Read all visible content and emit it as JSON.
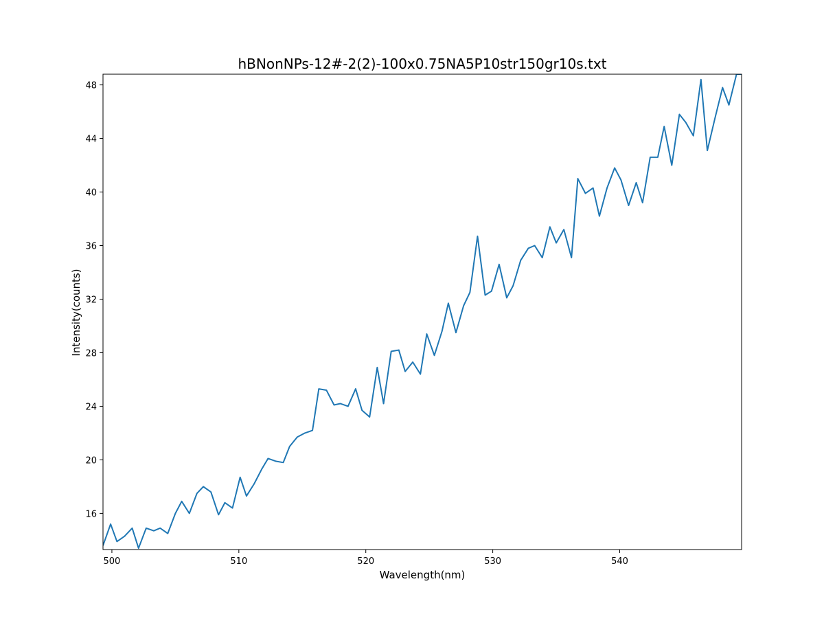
{
  "chart_data": {
    "type": "line",
    "title": "hBNonNPs-12#-2(2)-100x0.75NA5P10str150gr10s.txt",
    "xlabel": "Wavelength(nm)",
    "ylabel": "Intensity(counts)",
    "xlim": [
      499.3,
      549.6
    ],
    "ylim": [
      13.3,
      48.8
    ],
    "xticks": [
      500,
      510,
      520,
      530,
      540
    ],
    "yticks": [
      16,
      20,
      24,
      28,
      32,
      36,
      40,
      44,
      48
    ],
    "grid": false,
    "legend": "none",
    "line_color": "#1f77b4",
    "series": [
      {
        "x": [
          499.3,
          499.9,
          500.4,
          501.0,
          501.6,
          502.1,
          502.7,
          503.3,
          503.8,
          504.4,
          505.0,
          505.5,
          506.1,
          506.7,
          507.2,
          507.8,
          508.4,
          508.9,
          509.5,
          510.1,
          510.6,
          511.2,
          511.8,
          512.3,
          512.9,
          513.5,
          514.0,
          514.6,
          515.2,
          515.8,
          516.3,
          516.9,
          517.5,
          518.0,
          518.6,
          519.2,
          519.7,
          520.3,
          520.9,
          521.4,
          522.0,
          522.6,
          523.1,
          523.7,
          524.3,
          524.8,
          525.4,
          526.0,
          526.5,
          527.1,
          527.7,
          528.2,
          528.8,
          529.4,
          529.9,
          530.5,
          531.1,
          531.6,
          532.2,
          532.8,
          533.3,
          533.9,
          534.5,
          535.0,
          535.6,
          536.2,
          536.7,
          537.3,
          537.9,
          538.4,
          539.0,
          539.6,
          540.1,
          540.7,
          541.3,
          541.8,
          542.4,
          543.0,
          543.5,
          544.1,
          544.7,
          545.2,
          545.8,
          546.4,
          546.9,
          547.5,
          548.1,
          548.6,
          549.2,
          549.6
        ],
        "y": [
          13.6,
          15.2,
          13.9,
          14.3,
          14.9,
          13.4,
          14.9,
          14.7,
          14.9,
          14.5,
          16.0,
          16.9,
          16.0,
          17.5,
          18.0,
          17.6,
          15.9,
          16.8,
          16.4,
          18.7,
          17.3,
          18.2,
          19.3,
          20.1,
          19.9,
          19.8,
          21.0,
          21.7,
          22.0,
          22.2,
          25.3,
          25.2,
          24.1,
          24.2,
          24.0,
          25.3,
          23.7,
          23.2,
          26.9,
          24.2,
          28.1,
          28.2,
          26.6,
          27.3,
          26.4,
          29.4,
          27.8,
          29.6,
          31.7,
          29.5,
          31.5,
          32.5,
          36.7,
          32.3,
          32.6,
          34.6,
          32.1,
          33.0,
          34.9,
          35.8,
          36.0,
          35.1,
          37.4,
          36.2,
          37.2,
          35.1,
          41.0,
          39.9,
          40.3,
          38.2,
          40.3,
          41.8,
          40.9,
          39.0,
          40.7,
          39.2,
          42.6,
          42.6,
          44.9,
          42.0,
          45.8,
          45.2,
          44.2,
          48.4,
          43.1,
          45.5,
          47.8,
          46.5,
          48.8,
          48.8
        ]
      }
    ]
  }
}
